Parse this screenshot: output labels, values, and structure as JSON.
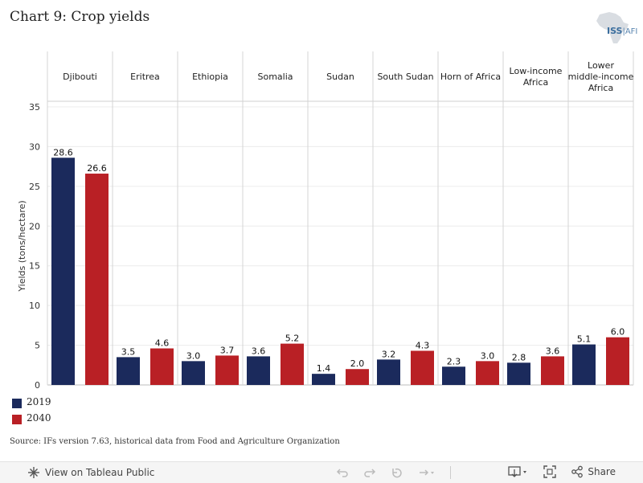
{
  "title": "Chart 9: Crop yields",
  "logo": {
    "text_main": "ISS",
    "text_sub": "AFI"
  },
  "chart_data": {
    "type": "bar",
    "categories": [
      "Djibouti",
      "Eritrea",
      "Ethiopia",
      "Somalia",
      "Sudan",
      "South Sudan",
      "Horn of Africa",
      "Low-income Africa",
      "Lower middle-income Africa"
    ],
    "category_lines": [
      [
        "Djibouti"
      ],
      [
        "Eritrea"
      ],
      [
        "Ethiopia"
      ],
      [
        "Somalia"
      ],
      [
        "Sudan"
      ],
      [
        "South Sudan"
      ],
      [
        "Horn of Africa"
      ],
      [
        "Low-income",
        "Africa"
      ],
      [
        "Lower",
        "middle-income",
        "Africa"
      ]
    ],
    "series": [
      {
        "name": "2019",
        "color": "#1b2a5c",
        "values": [
          28.6,
          3.5,
          3.0,
          3.6,
          1.4,
          3.2,
          2.3,
          2.8,
          5.1
        ],
        "labels": [
          "28.6",
          "3.5",
          "3.0",
          "3.6",
          "1.4",
          "3.2",
          "2.3",
          "2.8",
          "5.1"
        ]
      },
      {
        "name": "2040",
        "color": "#b92025",
        "values": [
          26.6,
          4.6,
          3.7,
          5.2,
          2.0,
          4.3,
          3.0,
          3.6,
          6.0
        ],
        "labels": [
          "26.6",
          "4.6",
          "3.7",
          "5.2",
          "2.0",
          "4.3",
          "3.0",
          "3.6",
          "6.0"
        ]
      }
    ],
    "ylabel": "Yields (tons/hectare)",
    "ylim": [
      0,
      35
    ],
    "yticks": [
      0,
      5,
      10,
      15,
      20,
      25,
      30,
      35
    ],
    "grid": true,
    "legend_position": "bottom-left"
  },
  "source": "Source: IFs version 7.63, historical data from Food and Agriculture Organization",
  "toolbar": {
    "view_label": "View on Tableau Public",
    "share_label": "Share"
  }
}
